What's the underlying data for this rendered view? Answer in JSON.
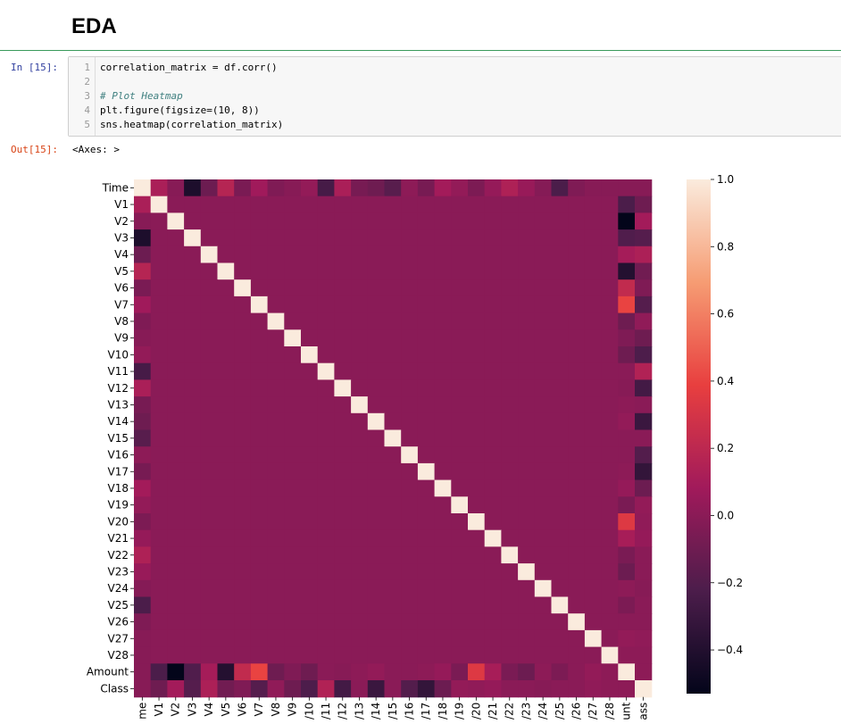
{
  "page": {
    "section_heading": "EDA"
  },
  "cell_in": {
    "prompt": "In [15]:",
    "lines": [
      {
        "num": "1",
        "text": "correlation_matrix = df.corr()"
      },
      {
        "num": "2",
        "text": ""
      },
      {
        "num": "3",
        "text": "# Plot Heatmap"
      },
      {
        "num": "4",
        "text": "plt.figure(figsize=(10, 8))"
      },
      {
        "num": "5",
        "text": "sns.heatmap(correlation_matrix)"
      }
    ]
  },
  "cell_out": {
    "prompt": "Out[15]:",
    "text": "<Axes: >"
  },
  "chart_data": {
    "type": "heatmap",
    "labels": [
      "Time",
      "V1",
      "V2",
      "V3",
      "V4",
      "V5",
      "V6",
      "V7",
      "V8",
      "V9",
      "V10",
      "V11",
      "V12",
      "V13",
      "V14",
      "V15",
      "V16",
      "V17",
      "V18",
      "V19",
      "V20",
      "V21",
      "V22",
      "V23",
      "V24",
      "V25",
      "V26",
      "V27",
      "V28",
      "Amount",
      "Class"
    ],
    "x_tick_labels_visible": [
      "me",
      "V1",
      "V2",
      "V3",
      "V4",
      "V5",
      "V6",
      "V7",
      "V8",
      "V9",
      "/10",
      "/11",
      "/12",
      "/13",
      "/14",
      "/15",
      "/16",
      "/17",
      "/18",
      "/19",
      "/20",
      "/21",
      "/22",
      "/23",
      "/24",
      "/25",
      "/26",
      "/27",
      "/28",
      "unt",
      "ass"
    ],
    "colorbar": {
      "ticks": [
        1.0,
        0.8,
        0.6,
        0.4,
        0.2,
        0.0,
        -0.2,
        -0.4
      ],
      "tick_labels": [
        "1.0",
        "0.8",
        "0.6",
        "0.4",
        "0.2",
        "0.0",
        "−0.2",
        "−0.4"
      ],
      "vmin": -0.53,
      "vmax": 1.0
    },
    "colormap": "rocket",
    "colormap_stops": [
      "#03051a",
      "#4c1d4b",
      "#a11a5b",
      "#e83f3f",
      "#f69c73",
      "#faebdd"
    ],
    "diagonal_value": 1.0,
    "background_value": 0.0,
    "time_column": [
      1.0,
      0.12,
      -0.01,
      -0.42,
      -0.11,
      0.17,
      -0.06,
      0.08,
      -0.04,
      -0.01,
      0.03,
      -0.25,
      0.12,
      -0.07,
      -0.1,
      -0.18,
      0.01,
      -0.07,
      0.09,
      0.03,
      -0.05,
      0.04,
      0.14,
      0.05,
      -0.02,
      -0.23,
      -0.04,
      -0.01,
      -0.01,
      -0.01,
      -0.01
    ],
    "amount_column": [
      -0.01,
      -0.23,
      -0.53,
      -0.21,
      0.1,
      -0.39,
      0.22,
      0.4,
      -0.1,
      -0.04,
      -0.1,
      0.0,
      -0.01,
      0.01,
      0.03,
      -0.0,
      -0.0,
      0.01,
      0.04,
      -0.06,
      0.34,
      0.11,
      -0.06,
      -0.11,
      0.01,
      -0.05,
      -0.0,
      0.03,
      0.01,
      1.0,
      0.01
    ],
    "class_column": [
      -0.01,
      -0.1,
      0.09,
      -0.19,
      0.13,
      -0.09,
      -0.04,
      -0.19,
      0.02,
      -0.1,
      -0.22,
      0.15,
      -0.26,
      -0.0,
      -0.3,
      -0.0,
      -0.2,
      -0.33,
      -0.11,
      0.03,
      0.02,
      0.04,
      0.0,
      -0.0,
      -0.01,
      0.0,
      0.0,
      0.02,
      0.01,
      0.01,
      1.0
    ]
  }
}
